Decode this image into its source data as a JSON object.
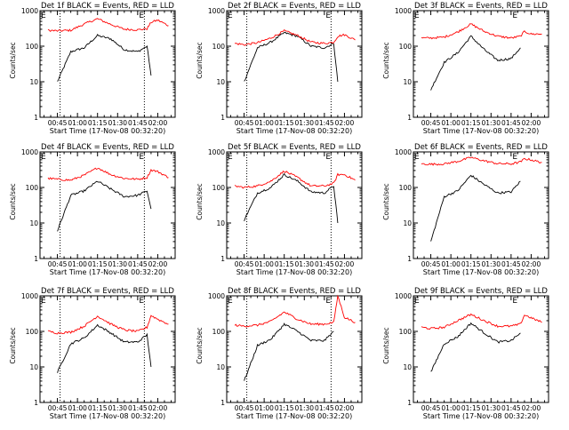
{
  "panel_xlabel": "Start Time (17-Nov-08 00:32:20)",
  "panel_ylabel": "Counts/sec",
  "corner_marker": "E",
  "x_tick_labels": [
    "00:45",
    "01:00",
    "01:15",
    "01:30",
    "01:45",
    "02:00"
  ],
  "y_tick_labels": [
    "1",
    "10",
    "100",
    "1000"
  ],
  "colors": {
    "events": "#000000",
    "lld": "#ff0000",
    "frame": "#000000"
  },
  "chart_data": [
    {
      "type": "line",
      "title": "Det 1f BLACK = Events, RED = LLD",
      "xlabel": "Start Time (17-Nov-08 00:32:20)",
      "ylabel": "Counts/sec",
      "y_scale": "log",
      "ylim": [
        1,
        1000
      ],
      "x": [
        "00:38",
        "00:45",
        "00:55",
        "01:05",
        "01:15",
        "01:25",
        "01:35",
        "01:45",
        "01:52",
        "01:55",
        "02:00",
        "02:08"
      ],
      "series": [
        {
          "name": "BLACK = Events",
          "values": [
            null,
            10,
            70,
            90,
            200,
            160,
            80,
            70,
            100,
            15,
            null,
            null
          ]
        },
        {
          "name": "RED = LLD",
          "values": [
            280,
            270,
            280,
            420,
            590,
            410,
            300,
            290,
            310,
            470,
            540,
            380
          ]
        }
      ],
      "vlines": [
        "00:47",
        "01:50"
      ]
    },
    {
      "type": "line",
      "title": "Det 2f BLACK = Events, RED = LLD",
      "xlabel": "Start Time (17-Nov-08 00:32:20)",
      "ylabel": "Counts/sec",
      "y_scale": "log",
      "ylim": [
        1,
        1000
      ],
      "x": [
        "00:38",
        "00:45",
        "00:55",
        "01:05",
        "01:15",
        "01:25",
        "01:35",
        "01:45",
        "01:52",
        "01:55",
        "02:00",
        "02:08"
      ],
      "series": [
        {
          "name": "BLACK = Events",
          "values": [
            null,
            10,
            90,
            130,
            240,
            190,
            100,
            90,
            120,
            10,
            null,
            null
          ]
        },
        {
          "name": "RED = LLD",
          "values": [
            120,
            110,
            125,
            170,
            270,
            200,
            130,
            120,
            130,
            190,
            210,
            150
          ]
        }
      ],
      "vlines": [
        "00:47",
        "01:50"
      ]
    },
    {
      "type": "line",
      "title": "Det 3f BLACK = Events, RED = LLD",
      "xlabel": "Start Time (17-Nov-08 00:32:20)",
      "ylabel": "Counts/sec",
      "y_scale": "log",
      "ylim": [
        1,
        1000
      ],
      "x": [
        "00:38",
        "00:45",
        "00:55",
        "01:05",
        "01:15",
        "01:25",
        "01:35",
        "01:45",
        "01:52",
        "01:55",
        "02:00",
        "02:08"
      ],
      "series": [
        {
          "name": "BLACK = Events",
          "values": [
            null,
            6,
            35,
            65,
            190,
            80,
            40,
            45,
            90,
            null,
            null,
            null
          ]
        },
        {
          "name": "RED = LLD",
          "values": [
            170,
            170,
            180,
            250,
            420,
            260,
            190,
            170,
            190,
            260,
            220,
            220
          ]
        }
      ],
      "vlines": []
    },
    {
      "type": "line",
      "title": "Det 4f BLACK = Events, RED = LLD",
      "xlabel": "Start Time (17-Nov-08 00:32:20)",
      "ylabel": "Counts/sec",
      "y_scale": "log",
      "ylim": [
        1,
        1000
      ],
      "x": [
        "00:38",
        "00:45",
        "00:55",
        "01:05",
        "01:15",
        "01:25",
        "01:35",
        "01:45",
        "01:52",
        "01:55",
        "02:00",
        "02:08"
      ],
      "series": [
        {
          "name": "BLACK = Events",
          "values": [
            null,
            6,
            60,
            80,
            150,
            90,
            55,
            60,
            80,
            25,
            null,
            null
          ]
        },
        {
          "name": "RED = LLD",
          "values": [
            180,
            170,
            160,
            220,
            360,
            230,
            180,
            170,
            190,
            310,
            280,
            190
          ]
        }
      ],
      "vlines": [
        "00:47",
        "01:50"
      ]
    },
    {
      "type": "line",
      "title": "Det 5f BLACK = Events, RED = LLD",
      "xlabel": "Start Time (17-Nov-08 00:32:20)",
      "ylabel": "Counts/sec",
      "y_scale": "log",
      "ylim": [
        1,
        1000
      ],
      "x": [
        "00:38",
        "00:45",
        "00:55",
        "01:05",
        "01:15",
        "01:25",
        "01:35",
        "01:45",
        "01:52",
        "01:55",
        "02:00",
        "02:08"
      ],
      "series": [
        {
          "name": "BLACK = Events",
          "values": [
            null,
            12,
            70,
            100,
            230,
            150,
            75,
            70,
            110,
            10,
            null,
            null
          ]
        },
        {
          "name": "RED = LLD",
          "values": [
            110,
            100,
            110,
            150,
            290,
            190,
            110,
            110,
            130,
            230,
            230,
            160
          ]
        }
      ],
      "vlines": [
        "00:47",
        "01:50"
      ]
    },
    {
      "type": "line",
      "title": "Det 6f BLACK = Events, RED = LLD",
      "xlabel": "Start Time (17-Nov-08 00:32:20)",
      "ylabel": "Counts/sec",
      "y_scale": "log",
      "ylim": [
        1,
        1000
      ],
      "x": [
        "00:38",
        "00:45",
        "00:55",
        "01:05",
        "01:15",
        "01:25",
        "01:35",
        "01:45",
        "01:52",
        "01:55",
        "02:00",
        "02:08"
      ],
      "series": [
        {
          "name": "BLACK = Events",
          "values": [
            null,
            3,
            55,
            80,
            220,
            120,
            70,
            75,
            150,
            null,
            null,
            null
          ]
        },
        {
          "name": "RED = LLD",
          "values": [
            460,
            450,
            460,
            540,
            700,
            560,
            470,
            460,
            520,
            640,
            600,
            500
          ]
        }
      ],
      "vlines": []
    },
    {
      "type": "line",
      "title": "Det 7f BLACK = Events, RED = LLD",
      "xlabel": "Start Time (17-Nov-08 00:32:20)",
      "ylabel": "Counts/sec",
      "y_scale": "log",
      "ylim": [
        1,
        1000
      ],
      "x": [
        "00:38",
        "00:45",
        "00:55",
        "01:05",
        "01:15",
        "01:25",
        "01:35",
        "01:45",
        "01:52",
        "01:55",
        "02:00",
        "02:08"
      ],
      "series": [
        {
          "name": "BLACK = Events",
          "values": [
            null,
            7,
            45,
            65,
            150,
            90,
            50,
            50,
            80,
            10,
            null,
            null
          ]
        },
        {
          "name": "RED = LLD",
          "values": [
            100,
            90,
            95,
            140,
            270,
            160,
            110,
            100,
            130,
            280,
            220,
            160
          ]
        }
      ],
      "vlines": [
        "00:47",
        "01:50"
      ]
    },
    {
      "type": "line",
      "title": "Det 8f BLACK = Events, RED = LLD",
      "xlabel": "Start Time (17-Nov-08 00:32:20)",
      "ylabel": "Counts/sec",
      "y_scale": "log",
      "ylim": [
        1,
        1000
      ],
      "x": [
        "00:38",
        "00:45",
        "00:55",
        "01:05",
        "01:15",
        "01:25",
        "01:35",
        "01:45",
        "01:52",
        "01:55",
        "02:00",
        "02:08"
      ],
      "series": [
        {
          "name": "BLACK = Events",
          "values": [
            null,
            4,
            40,
            60,
            160,
            100,
            55,
            55,
            100,
            null,
            null,
            null
          ]
        },
        {
          "name": "RED = LLD",
          "values": [
            150,
            140,
            150,
            190,
            350,
            220,
            160,
            160,
            180,
            1000,
            250,
            180
          ]
        }
      ],
      "vlines": [
        "00:47",
        "01:50"
      ]
    },
    {
      "type": "line",
      "title": "Det 9f BLACK = Events, RED = LLD",
      "xlabel": "Start Time (17-Nov-08 00:32:20)",
      "ylabel": "Counts/sec",
      "y_scale": "log",
      "ylim": [
        1,
        1000
      ],
      "x": [
        "00:38",
        "00:45",
        "00:55",
        "01:05",
        "01:15",
        "01:25",
        "01:35",
        "01:45",
        "01:52",
        "01:55",
        "02:00",
        "02:08"
      ],
      "series": [
        {
          "name": "BLACK = Events",
          "values": [
            null,
            7,
            45,
            70,
            170,
            90,
            50,
            55,
            90,
            null,
            null,
            null
          ]
        },
        {
          "name": "RED = LLD",
          "values": [
            130,
            120,
            130,
            200,
            300,
            200,
            140,
            140,
            160,
            290,
            240,
            180
          ]
        }
      ],
      "vlines": []
    }
  ]
}
